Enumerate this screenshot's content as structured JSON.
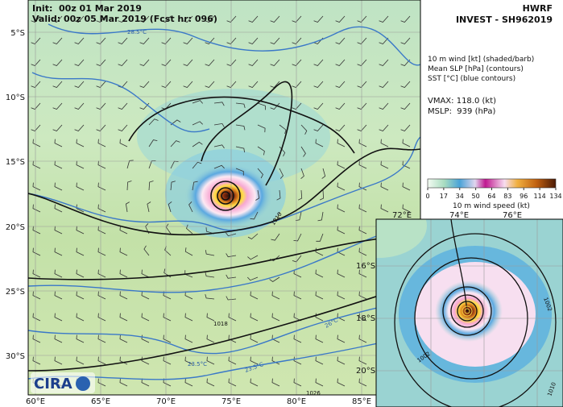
{
  "header": {
    "init": "Init:  00z 01 Mar 2019",
    "valid": "Valid: 00z 05 Mar 2019 (Fcst hr: 096)",
    "model": "HWRF",
    "storm": "INVEST - SH962019"
  },
  "legend": {
    "lines": [
      "10 m wind [kt] (shaded/barb)",
      "Mean SLP [hPa] (contours)",
      "SST [°C] (blue contours)"
    ],
    "vmax": "VMAX: 118.0 (kt)",
    "mslp": "MSLP:  939 (hPa)"
  },
  "colorbar": {
    "ticks": [
      "0",
      "17",
      "34",
      "50",
      "64",
      "83",
      "96",
      "114",
      "134"
    ],
    "label": "10 m wind speed (kt)"
  },
  "map": {
    "lat_labels": [
      "5°S",
      "10°S",
      "15°S",
      "20°S",
      "25°S",
      "30°S"
    ],
    "lon_labels": [
      "60°E",
      "65°E",
      "70°E",
      "75°E",
      "80°E",
      "85°E"
    ],
    "contour_labels": [
      "1010",
      "1018",
      "1026",
      "28.5°C",
      "26°C",
      "23.5°C",
      "23.5°C"
    ]
  },
  "inset": {
    "lon_labels": [
      "72°E",
      "74°E",
      "76°E"
    ],
    "lat_labels": [
      "16°S",
      "18°S",
      "20°S"
    ],
    "contour_labels": [
      "1002",
      "1002",
      "1010"
    ]
  },
  "logo": "CIRA"
}
